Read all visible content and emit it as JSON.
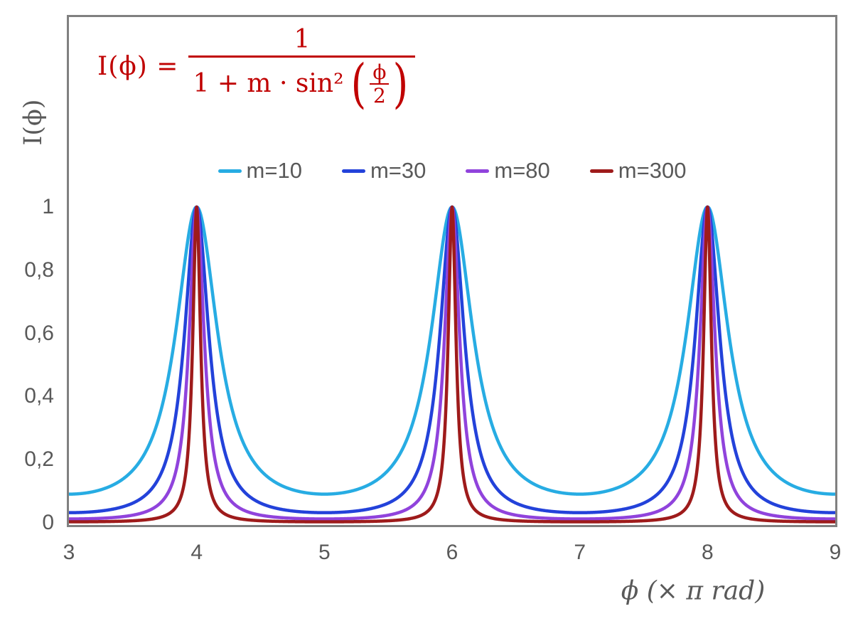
{
  "formula": {
    "lhs": "I(ϕ) =",
    "numerator": "1",
    "denominator_text": "1 + m · sin²",
    "inner_numerator": "ϕ",
    "inner_denominator": "2",
    "open_paren": "(",
    "close_paren": ")",
    "color": "#C00000"
  },
  "axes": {
    "y_label": "I(ϕ)",
    "x_label": "ϕ  (× π rad)"
  },
  "colors": {
    "frame": "#808080",
    "text_grey": "#595959",
    "formula_red": "#C00000"
  },
  "chart_data": {
    "type": "line",
    "title": "",
    "xlabel": "ϕ (× π rad)",
    "ylabel": "I(ϕ)",
    "xlim": [
      3,
      9
    ],
    "ylim": [
      0,
      1
    ],
    "grid": false,
    "legend_position": "top-center-inside",
    "function": "I(ϕ) = 1 / (1 + m·sin²(ϕ/2)), with ϕ plotted in units of π rad",
    "x_ticks": [
      3,
      4,
      5,
      6,
      7,
      8,
      9
    ],
    "y_ticks": [
      {
        "value": 0,
        "label": "0"
      },
      {
        "value": 0.2,
        "label": "0,2"
      },
      {
        "value": 0.4,
        "label": "0,4"
      },
      {
        "value": 0.6,
        "label": "0,6"
      },
      {
        "value": 0.8,
        "label": "0,8"
      },
      {
        "value": 1,
        "label": "1"
      }
    ],
    "peaks_at_x": [
      4,
      6,
      8
    ],
    "peak_value": 1,
    "minima_at_x": [
      3,
      5,
      7,
      9
    ],
    "series": [
      {
        "name": "m=10",
        "m": 10,
        "color": "#27ACE3",
        "min_value": 0.0909,
        "values_at_x_ticks": [
          0.0909,
          1,
          0.0909,
          1,
          0.0909,
          1,
          0.0909
        ]
      },
      {
        "name": "m=30",
        "m": 30,
        "color": "#2342DA",
        "min_value": 0.0323,
        "values_at_x_ticks": [
          0.0323,
          1,
          0.0323,
          1,
          0.0323,
          1,
          0.0323
        ]
      },
      {
        "name": "m=80",
        "m": 80,
        "color": "#9043DC",
        "min_value": 0.0123,
        "values_at_x_ticks": [
          0.0123,
          1,
          0.0123,
          1,
          0.0123,
          1,
          0.0123
        ]
      },
      {
        "name": "m=300",
        "m": 300,
        "color": "#9E1B1B",
        "min_value": 0.0033,
        "values_at_x_ticks": [
          0.0033,
          1,
          0.0033,
          1,
          0.0033,
          1,
          0.0033
        ]
      }
    ]
  }
}
